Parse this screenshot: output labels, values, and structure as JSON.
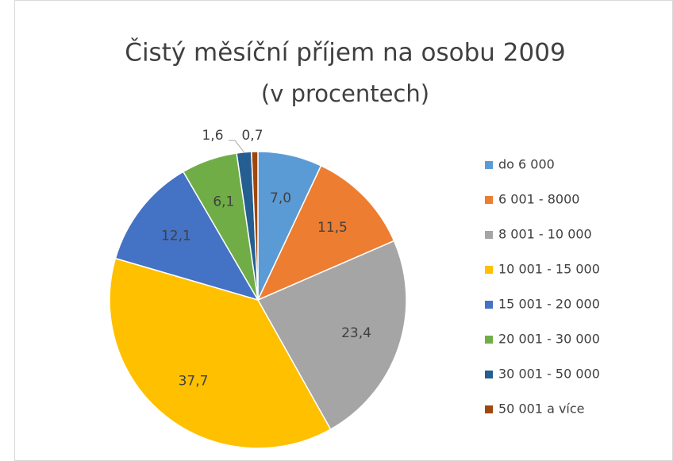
{
  "chart_data": {
    "type": "pie",
    "title": "Čistý měsíční příjem na osobu 2009",
    "subtitle": "(v procentech)",
    "categories": [
      "do 6 000",
      "6 001 - 8000",
      "8 001 - 10 000",
      "10 001 - 15 000",
      "15 001 - 20 000",
      "20 001 - 30 000",
      "30 001 - 50 000",
      "50 001 a více"
    ],
    "values": [
      7.0,
      11.5,
      23.4,
      37.7,
      12.1,
      6.1,
      1.6,
      0.7
    ],
    "value_labels": [
      "7,0",
      "11,5",
      "23,4",
      "37,7",
      "12,1",
      "6,1",
      "1,6",
      "0,7"
    ],
    "colors": [
      "#5b9bd5",
      "#ed7d31",
      "#a5a5a5",
      "#ffc000",
      "#4472c4",
      "#70ad47",
      "#255e91",
      "#9e480e"
    ],
    "legend": "right"
  }
}
